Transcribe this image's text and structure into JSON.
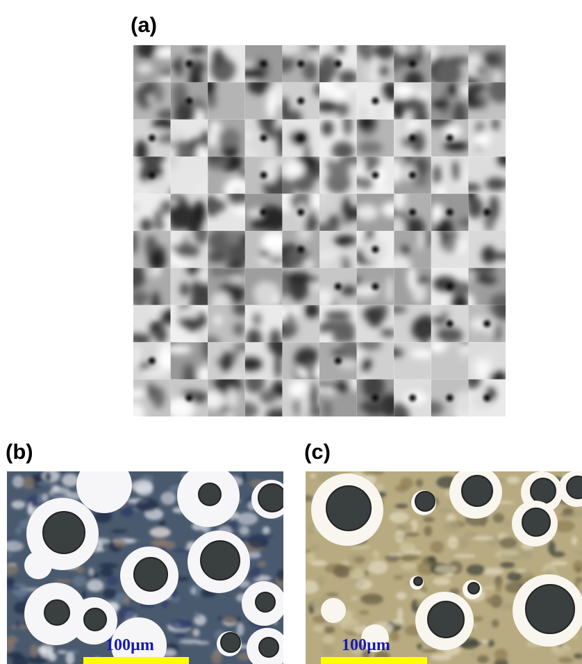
{
  "panels": [
    {
      "label": "(a)"
    },
    {
      "label": "(b)",
      "scale_bar": "100µm"
    },
    {
      "label": "(c)",
      "scale_bar": "100µm"
    }
  ]
}
